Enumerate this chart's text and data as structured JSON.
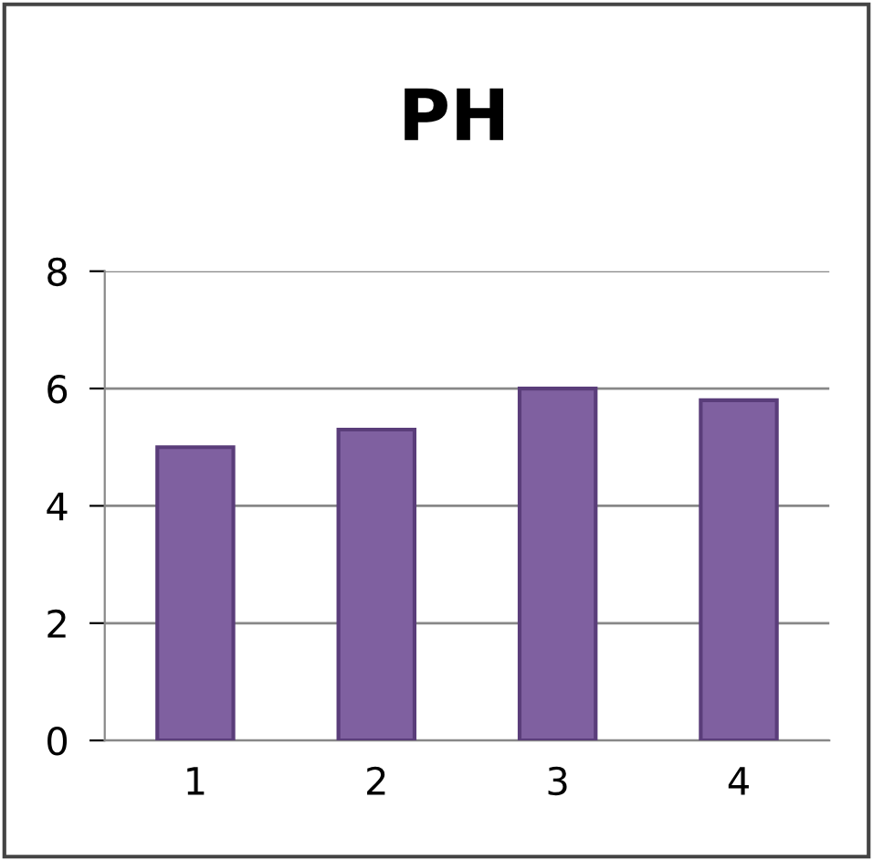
{
  "chart_data": {
    "type": "bar",
    "title": "PH",
    "categories": [
      "1",
      "2",
      "3",
      "4"
    ],
    "values": [
      5.0,
      5.3,
      6.0,
      5.8
    ],
    "color": "#7f60a0",
    "ylim": [
      0,
      8
    ],
    "yticks": [
      0,
      2,
      4,
      6,
      8
    ],
    "grid": "y",
    "legend": false
  }
}
